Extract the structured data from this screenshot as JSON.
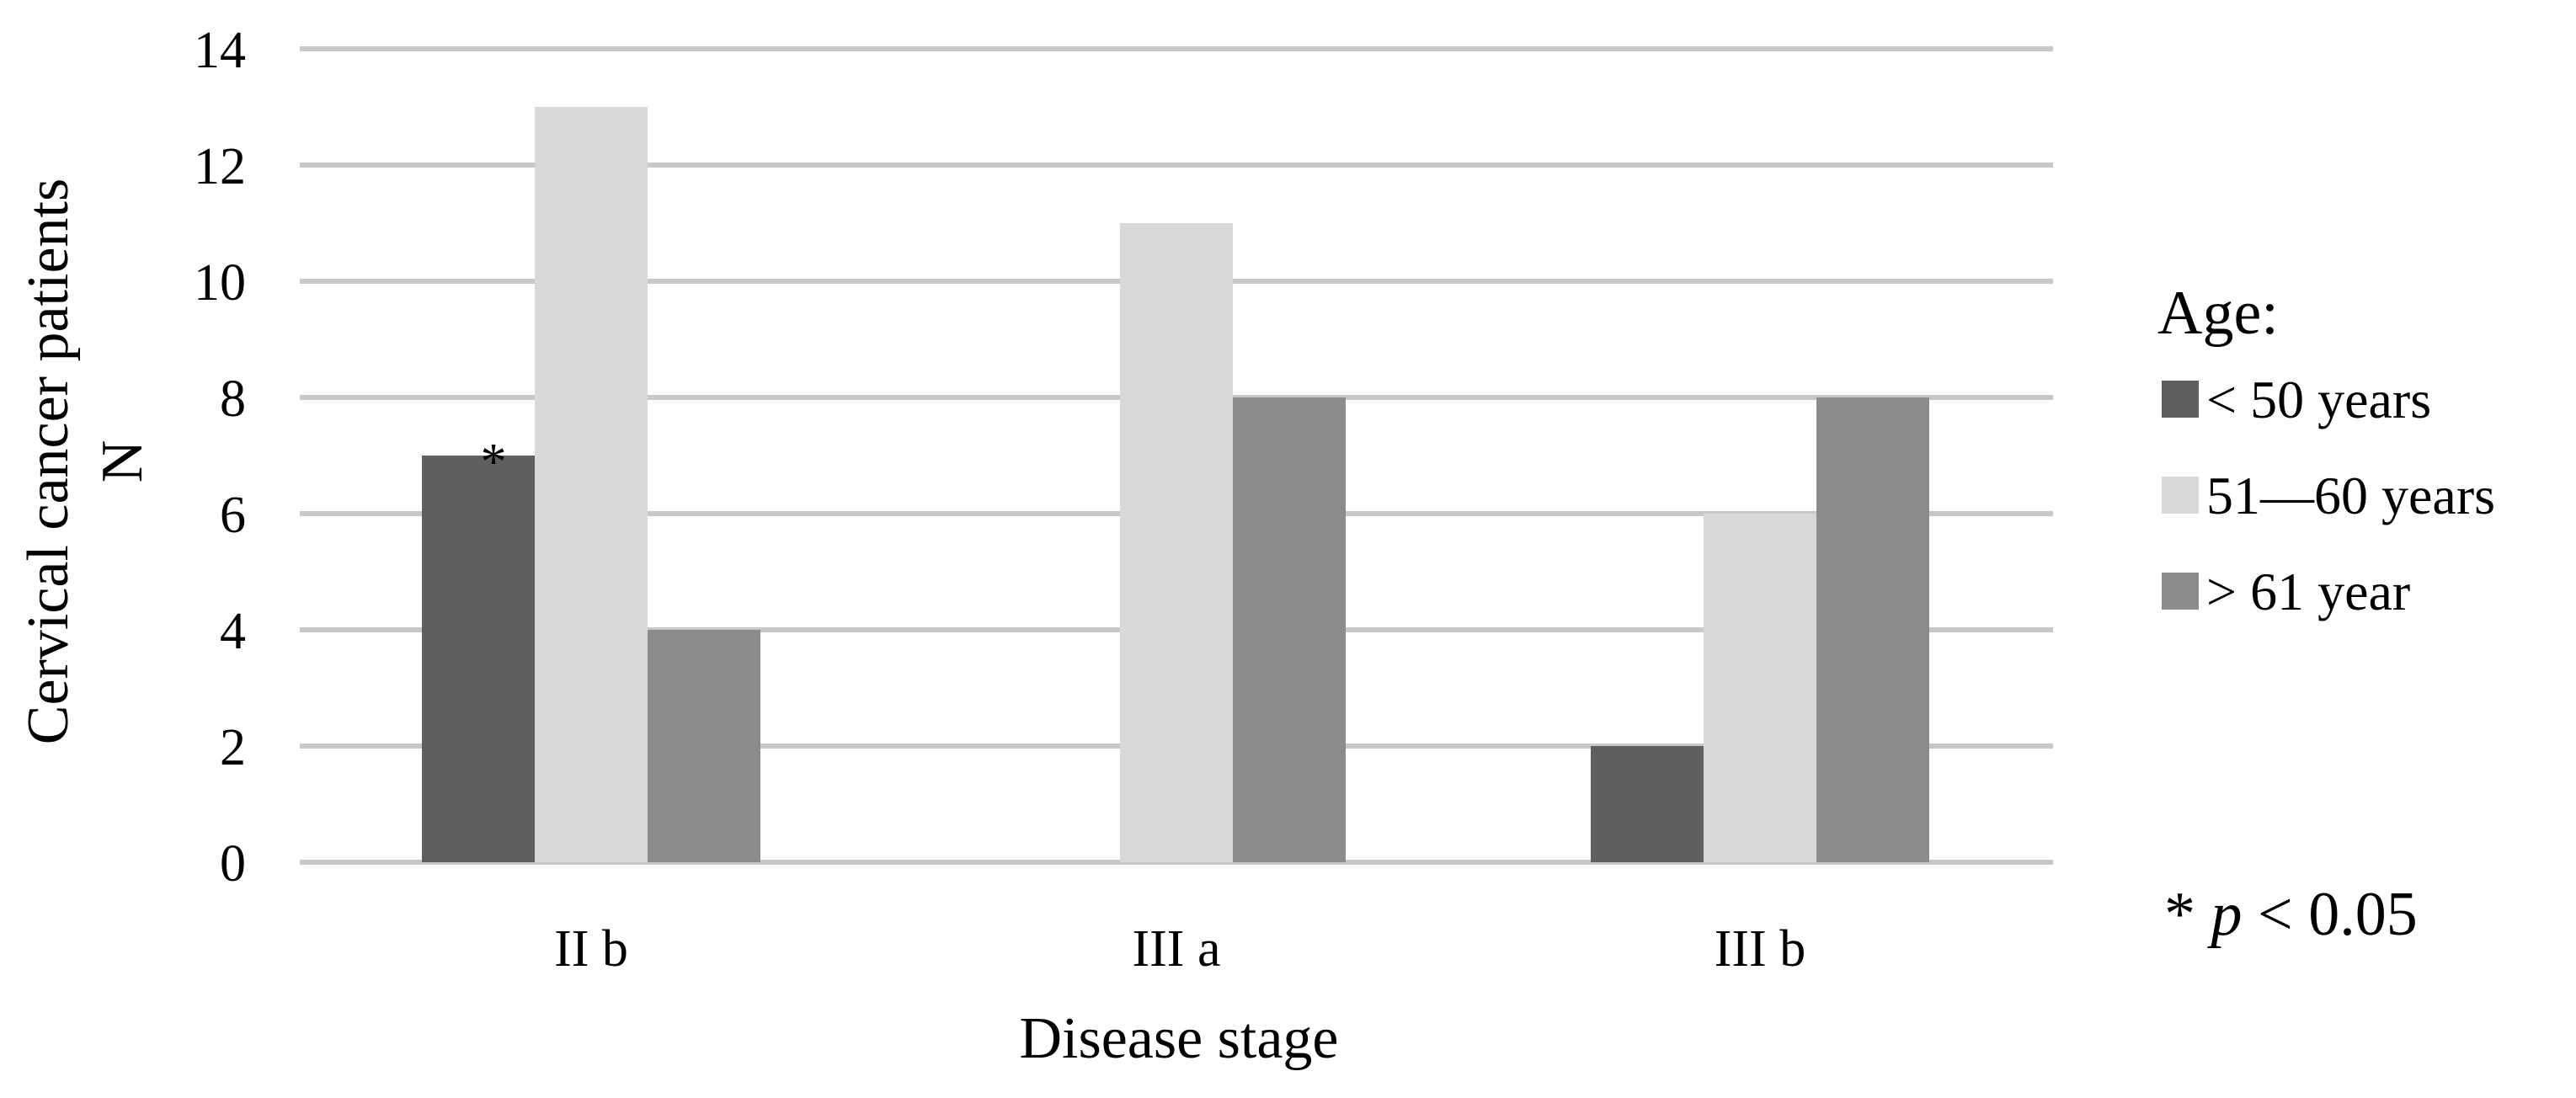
{
  "chart_data": {
    "type": "bar",
    "categories": [
      "II b",
      "III a",
      "III b"
    ],
    "series": [
      {
        "name": "< 50 years",
        "values": [
          7,
          0,
          2
        ],
        "color": "#5f5f5f"
      },
      {
        "name": "51—60 years",
        "values": [
          13,
          11,
          6
        ],
        "color": "#d9d9d9"
      },
      {
        "name": "> 61 year",
        "values": [
          4,
          8,
          8
        ],
        "color": "#8c8c8c"
      }
    ],
    "yticks": [
      0,
      2,
      4,
      6,
      8,
      10,
      12,
      14
    ],
    "ylim": [
      0,
      14
    ],
    "grid": true,
    "xlabel": "Disease stage",
    "ylabel_line1": "Cervical cancer patients",
    "ylabel_line2": "N",
    "legend_title": "Age:",
    "legend_position": "right",
    "annotations": [
      {
        "text": "*",
        "category": "II b",
        "series": "< 50 years"
      }
    ],
    "note": {
      "prefix": "* ",
      "p": "p",
      "suffix": " < 0.05"
    },
    "gridline_color": "#c8c8c8"
  }
}
